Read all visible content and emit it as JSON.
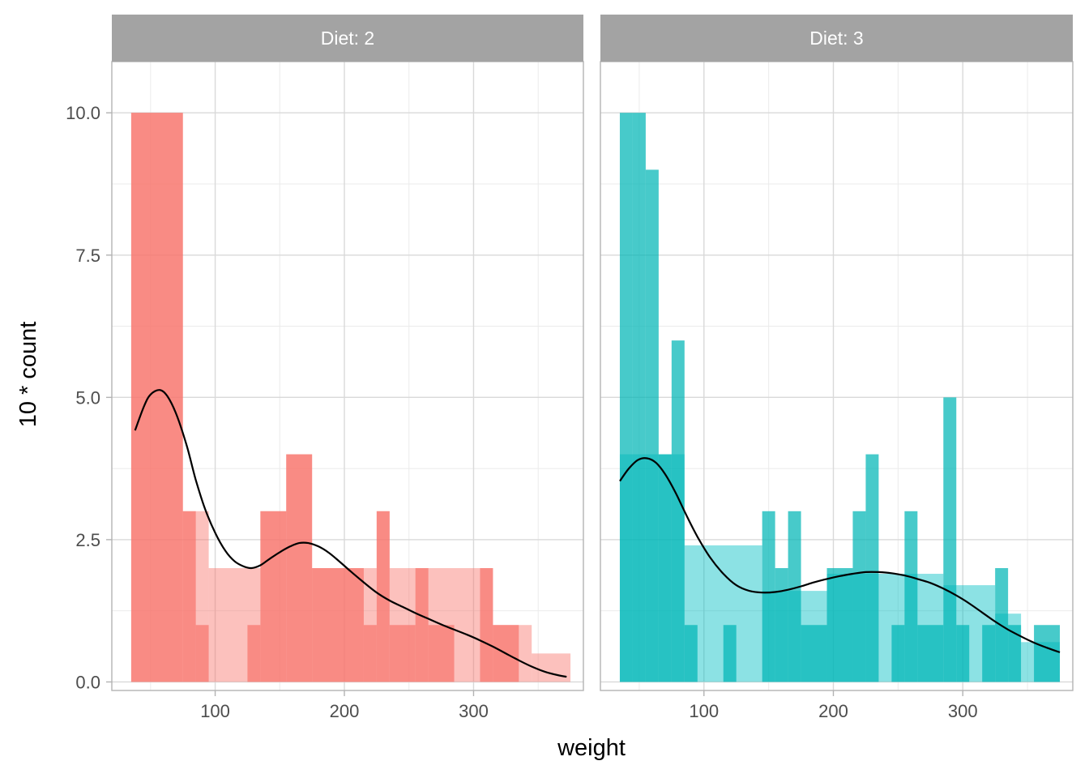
{
  "chart_data": {
    "type": "bar",
    "xlabel": "weight",
    "ylabel": "10 * count",
    "xlim": [
      20,
      385
    ],
    "ylim": [
      -0.15,
      10.9
    ],
    "x_ticks": [
      100,
      200,
      300
    ],
    "x_tick_labels": [
      "100",
      "200",
      "300"
    ],
    "y_ticks": [
      0,
      2.5,
      5,
      7.5,
      10
    ],
    "y_tick_labels": [
      "0.0",
      "2.5",
      "5.0",
      "7.5",
      "10.0"
    ],
    "x_minor_ticks": [
      50,
      150,
      250,
      350
    ],
    "y_minor_ticks": [
      1.25,
      3.75,
      6.25,
      8.75
    ],
    "grid": true,
    "colors": {
      "overlay": "#f8766d",
      "background": "#f8766d"
    },
    "panels": [
      {
        "title": "Diet: 2",
        "colors": {
          "overlay": "#f8766d",
          "background": "#f8766d"
        },
        "bin_width": 10,
        "counts_background": [
          {
            "x0": 35,
            "x1": 75,
            "value": 10
          },
          {
            "x0": 75,
            "x1": 95,
            "value": 3
          },
          {
            "x0": 95,
            "x1": 135,
            "value": 2
          },
          {
            "x0": 135,
            "x1": 155,
            "value": 3
          },
          {
            "x0": 155,
            "x1": 175,
            "value": 4
          },
          {
            "x0": 175,
            "x1": 225,
            "value": 2
          },
          {
            "x0": 225,
            "x1": 235,
            "value": 3
          },
          {
            "x0": 235,
            "x1": 305,
            "value": 2
          },
          {
            "x0": 305,
            "x1": 315,
            "value": 2
          },
          {
            "x0": 315,
            "x1": 345,
            "value": 1
          },
          {
            "x0": 345,
            "x1": 375,
            "value": 0.5
          }
        ],
        "counts_overlay": [
          {
            "x0": 35,
            "x1": 75,
            "value": 10
          },
          {
            "x0": 75,
            "x1": 85,
            "value": 3
          },
          {
            "x0": 85,
            "x1": 95,
            "value": 1
          },
          {
            "x0": 125,
            "x1": 135,
            "value": 1
          },
          {
            "x0": 135,
            "x1": 155,
            "value": 3
          },
          {
            "x0": 155,
            "x1": 175,
            "value": 4
          },
          {
            "x0": 175,
            "x1": 215,
            "value": 2
          },
          {
            "x0": 215,
            "x1": 225,
            "value": 1
          },
          {
            "x0": 225,
            "x1": 235,
            "value": 3
          },
          {
            "x0": 235,
            "x1": 255,
            "value": 1
          },
          {
            "x0": 255,
            "x1": 265,
            "value": 2
          },
          {
            "x0": 265,
            "x1": 285,
            "value": 1
          },
          {
            "x0": 305,
            "x1": 315,
            "value": 2
          },
          {
            "x0": 315,
            "x1": 335,
            "value": 1
          }
        ],
        "density": [
          [
            38,
            4.42
          ],
          [
            45,
            4.85
          ],
          [
            50,
            5.05
          ],
          [
            57,
            5.13
          ],
          [
            63,
            5.02
          ],
          [
            70,
            4.7
          ],
          [
            78,
            4.15
          ],
          [
            85,
            3.55
          ],
          [
            92,
            3.05
          ],
          [
            100,
            2.62
          ],
          [
            108,
            2.3
          ],
          [
            115,
            2.12
          ],
          [
            122,
            2.03
          ],
          [
            128,
            2.0
          ],
          [
            135,
            2.05
          ],
          [
            142,
            2.16
          ],
          [
            150,
            2.28
          ],
          [
            158,
            2.38
          ],
          [
            165,
            2.44
          ],
          [
            172,
            2.44
          ],
          [
            180,
            2.38
          ],
          [
            188,
            2.27
          ],
          [
            196,
            2.12
          ],
          [
            205,
            1.94
          ],
          [
            215,
            1.75
          ],
          [
            225,
            1.57
          ],
          [
            235,
            1.43
          ],
          [
            245,
            1.32
          ],
          [
            255,
            1.21
          ],
          [
            265,
            1.11
          ],
          [
            275,
            1.01
          ],
          [
            285,
            0.92
          ],
          [
            295,
            0.83
          ],
          [
            305,
            0.73
          ],
          [
            315,
            0.62
          ],
          [
            325,
            0.5
          ],
          [
            335,
            0.38
          ],
          [
            345,
            0.27
          ],
          [
            355,
            0.18
          ],
          [
            365,
            0.12
          ],
          [
            372,
            0.09
          ]
        ]
      },
      {
        "title": "Diet: 3",
        "colors": {
          "overlay": "#00b6b6",
          "background": "#00bfc4"
        },
        "bin_width": 10,
        "counts_background": [
          {
            "x0": 35,
            "x1": 85,
            "value": 4
          },
          {
            "x0": 85,
            "x1": 145,
            "value": 2.4
          },
          {
            "x0": 145,
            "x1": 195,
            "value": 1.6
          },
          {
            "x0": 195,
            "x1": 285,
            "value": 1.9
          },
          {
            "x0": 285,
            "x1": 325,
            "value": 1.7
          },
          {
            "x0": 325,
            "x1": 345,
            "value": 1.2
          },
          {
            "x0": 345,
            "x1": 375,
            "value": 0.7
          }
        ],
        "counts_overlay": [
          {
            "x0": 35,
            "x1": 45,
            "value": 10
          },
          {
            "x0": 45,
            "x1": 55,
            "value": 10
          },
          {
            "x0": 55,
            "x1": 65,
            "value": 9
          },
          {
            "x0": 65,
            "x1": 75,
            "value": 4
          },
          {
            "x0": 75,
            "x1": 85,
            "value": 6
          },
          {
            "x0": 85,
            "x1": 95,
            "value": 1
          },
          {
            "x0": 115,
            "x1": 125,
            "value": 1
          },
          {
            "x0": 145,
            "x1": 155,
            "value": 3
          },
          {
            "x0": 155,
            "x1": 165,
            "value": 2
          },
          {
            "x0": 165,
            "x1": 175,
            "value": 3
          },
          {
            "x0": 175,
            "x1": 195,
            "value": 1
          },
          {
            "x0": 195,
            "x1": 215,
            "value": 2
          },
          {
            "x0": 215,
            "x1": 225,
            "value": 3
          },
          {
            "x0": 225,
            "x1": 235,
            "value": 4
          },
          {
            "x0": 245,
            "x1": 255,
            "value": 1
          },
          {
            "x0": 255,
            "x1": 265,
            "value": 3
          },
          {
            "x0": 265,
            "x1": 285,
            "value": 1
          },
          {
            "x0": 285,
            "x1": 295,
            "value": 5
          },
          {
            "x0": 295,
            "x1": 305,
            "value": 1
          },
          {
            "x0": 315,
            "x1": 325,
            "value": 1
          },
          {
            "x0": 325,
            "x1": 335,
            "value": 2
          },
          {
            "x0": 335,
            "x1": 345,
            "value": 1
          },
          {
            "x0": 355,
            "x1": 375,
            "value": 1
          }
        ],
        "density": [
          [
            35,
            3.53
          ],
          [
            42,
            3.75
          ],
          [
            49,
            3.9
          ],
          [
            56,
            3.93
          ],
          [
            63,
            3.85
          ],
          [
            70,
            3.65
          ],
          [
            78,
            3.33
          ],
          [
            86,
            2.95
          ],
          [
            95,
            2.55
          ],
          [
            105,
            2.18
          ],
          [
            115,
            1.9
          ],
          [
            125,
            1.7
          ],
          [
            135,
            1.6
          ],
          [
            145,
            1.57
          ],
          [
            155,
            1.58
          ],
          [
            165,
            1.62
          ],
          [
            175,
            1.68
          ],
          [
            185,
            1.75
          ],
          [
            195,
            1.81
          ],
          [
            205,
            1.86
          ],
          [
            215,
            1.9
          ],
          [
            225,
            1.93
          ],
          [
            235,
            1.93
          ],
          [
            245,
            1.91
          ],
          [
            255,
            1.87
          ],
          [
            265,
            1.81
          ],
          [
            275,
            1.74
          ],
          [
            285,
            1.64
          ],
          [
            295,
            1.52
          ],
          [
            305,
            1.38
          ],
          [
            315,
            1.22
          ],
          [
            325,
            1.06
          ],
          [
            335,
            0.92
          ],
          [
            345,
            0.8
          ],
          [
            355,
            0.69
          ],
          [
            365,
            0.6
          ],
          [
            375,
            0.52
          ]
        ]
      }
    ]
  }
}
